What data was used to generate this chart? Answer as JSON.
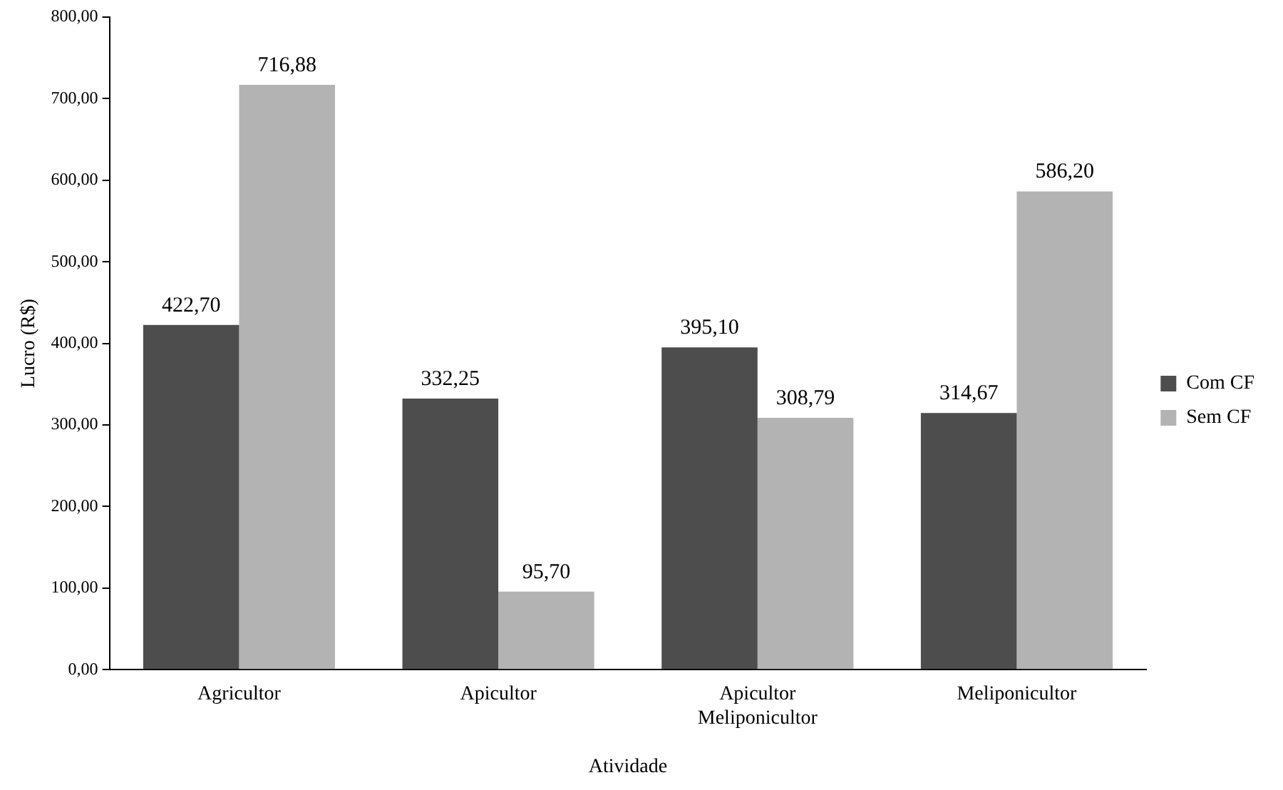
{
  "chart_data": {
    "type": "bar",
    "xlabel": "Atividade",
    "ylabel": "Lucro (R$)",
    "categories": [
      "Agricultor",
      "Apicultor",
      "Apicultor Meliponicultor",
      "Meliponicultor"
    ],
    "series": [
      {
        "name": "Com CF",
        "color": "#4d4d4d",
        "values": [
          422.7,
          332.25,
          395.1,
          314.67
        ],
        "value_labels": [
          "422,70",
          "332,25",
          "395,10",
          "314,67"
        ]
      },
      {
        "name": "Sem CF",
        "color": "#b3b3b3",
        "values": [
          716.88,
          95.7,
          308.79,
          586.2
        ],
        "value_labels": [
          "716,88",
          "95,70",
          "308,79",
          "586,20"
        ]
      }
    ],
    "ylim": [
      0,
      800
    ],
    "yticks": [
      {
        "value": 0,
        "label": "0,00"
      },
      {
        "value": 100,
        "label": "100,00"
      },
      {
        "value": 200,
        "label": "200,00"
      },
      {
        "value": 300,
        "label": "300,00"
      },
      {
        "value": 400,
        "label": "400,00"
      },
      {
        "value": 500,
        "label": "500,00"
      },
      {
        "value": 600,
        "label": "600,00"
      },
      {
        "value": 700,
        "label": "700,00"
      },
      {
        "value": 800,
        "label": "800,00"
      }
    ],
    "grid": false,
    "legend": "right"
  }
}
